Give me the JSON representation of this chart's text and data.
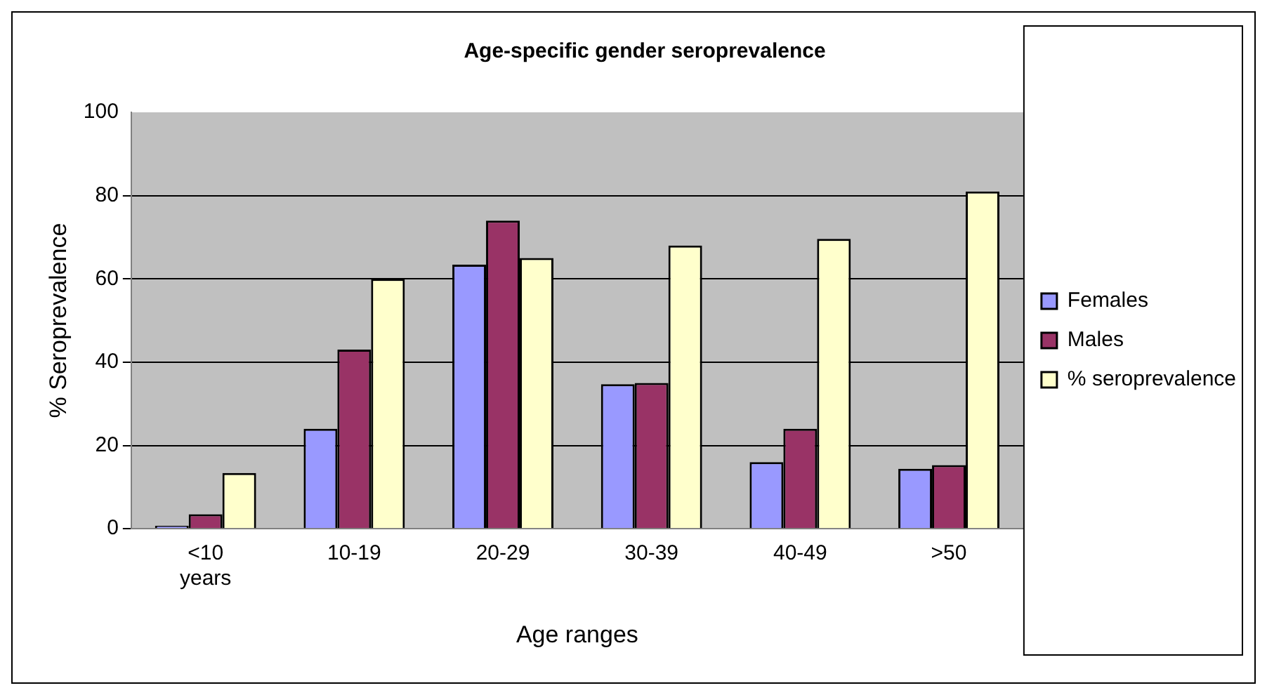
{
  "chart_data": {
    "type": "bar",
    "title": "Age-specific gender seroprevalence",
    "xlabel": "Age ranges",
    "ylabel": "% Seroprevalence",
    "categories": [
      "<10 years",
      "10-19",
      "20-29",
      "30-39",
      "40-49",
      ">50"
    ],
    "series": [
      {
        "name": "Females",
        "color": "#9999ff",
        "values": [
          0.7,
          24,
          63.4,
          34.7,
          16,
          14.4
        ]
      },
      {
        "name": "Males",
        "color": "#993366",
        "values": [
          3.5,
          43,
          74,
          35,
          24,
          15.3
        ]
      },
      {
        "name": "% seroprevalence",
        "color": "#ffffcc",
        "values": [
          13.4,
          60,
          65,
          68,
          69.6,
          81
        ]
      }
    ],
    "ylim": [
      0,
      100
    ],
    "yticks": [
      0,
      20,
      40,
      60,
      80,
      100
    ],
    "grid": "y",
    "legend": "right"
  }
}
